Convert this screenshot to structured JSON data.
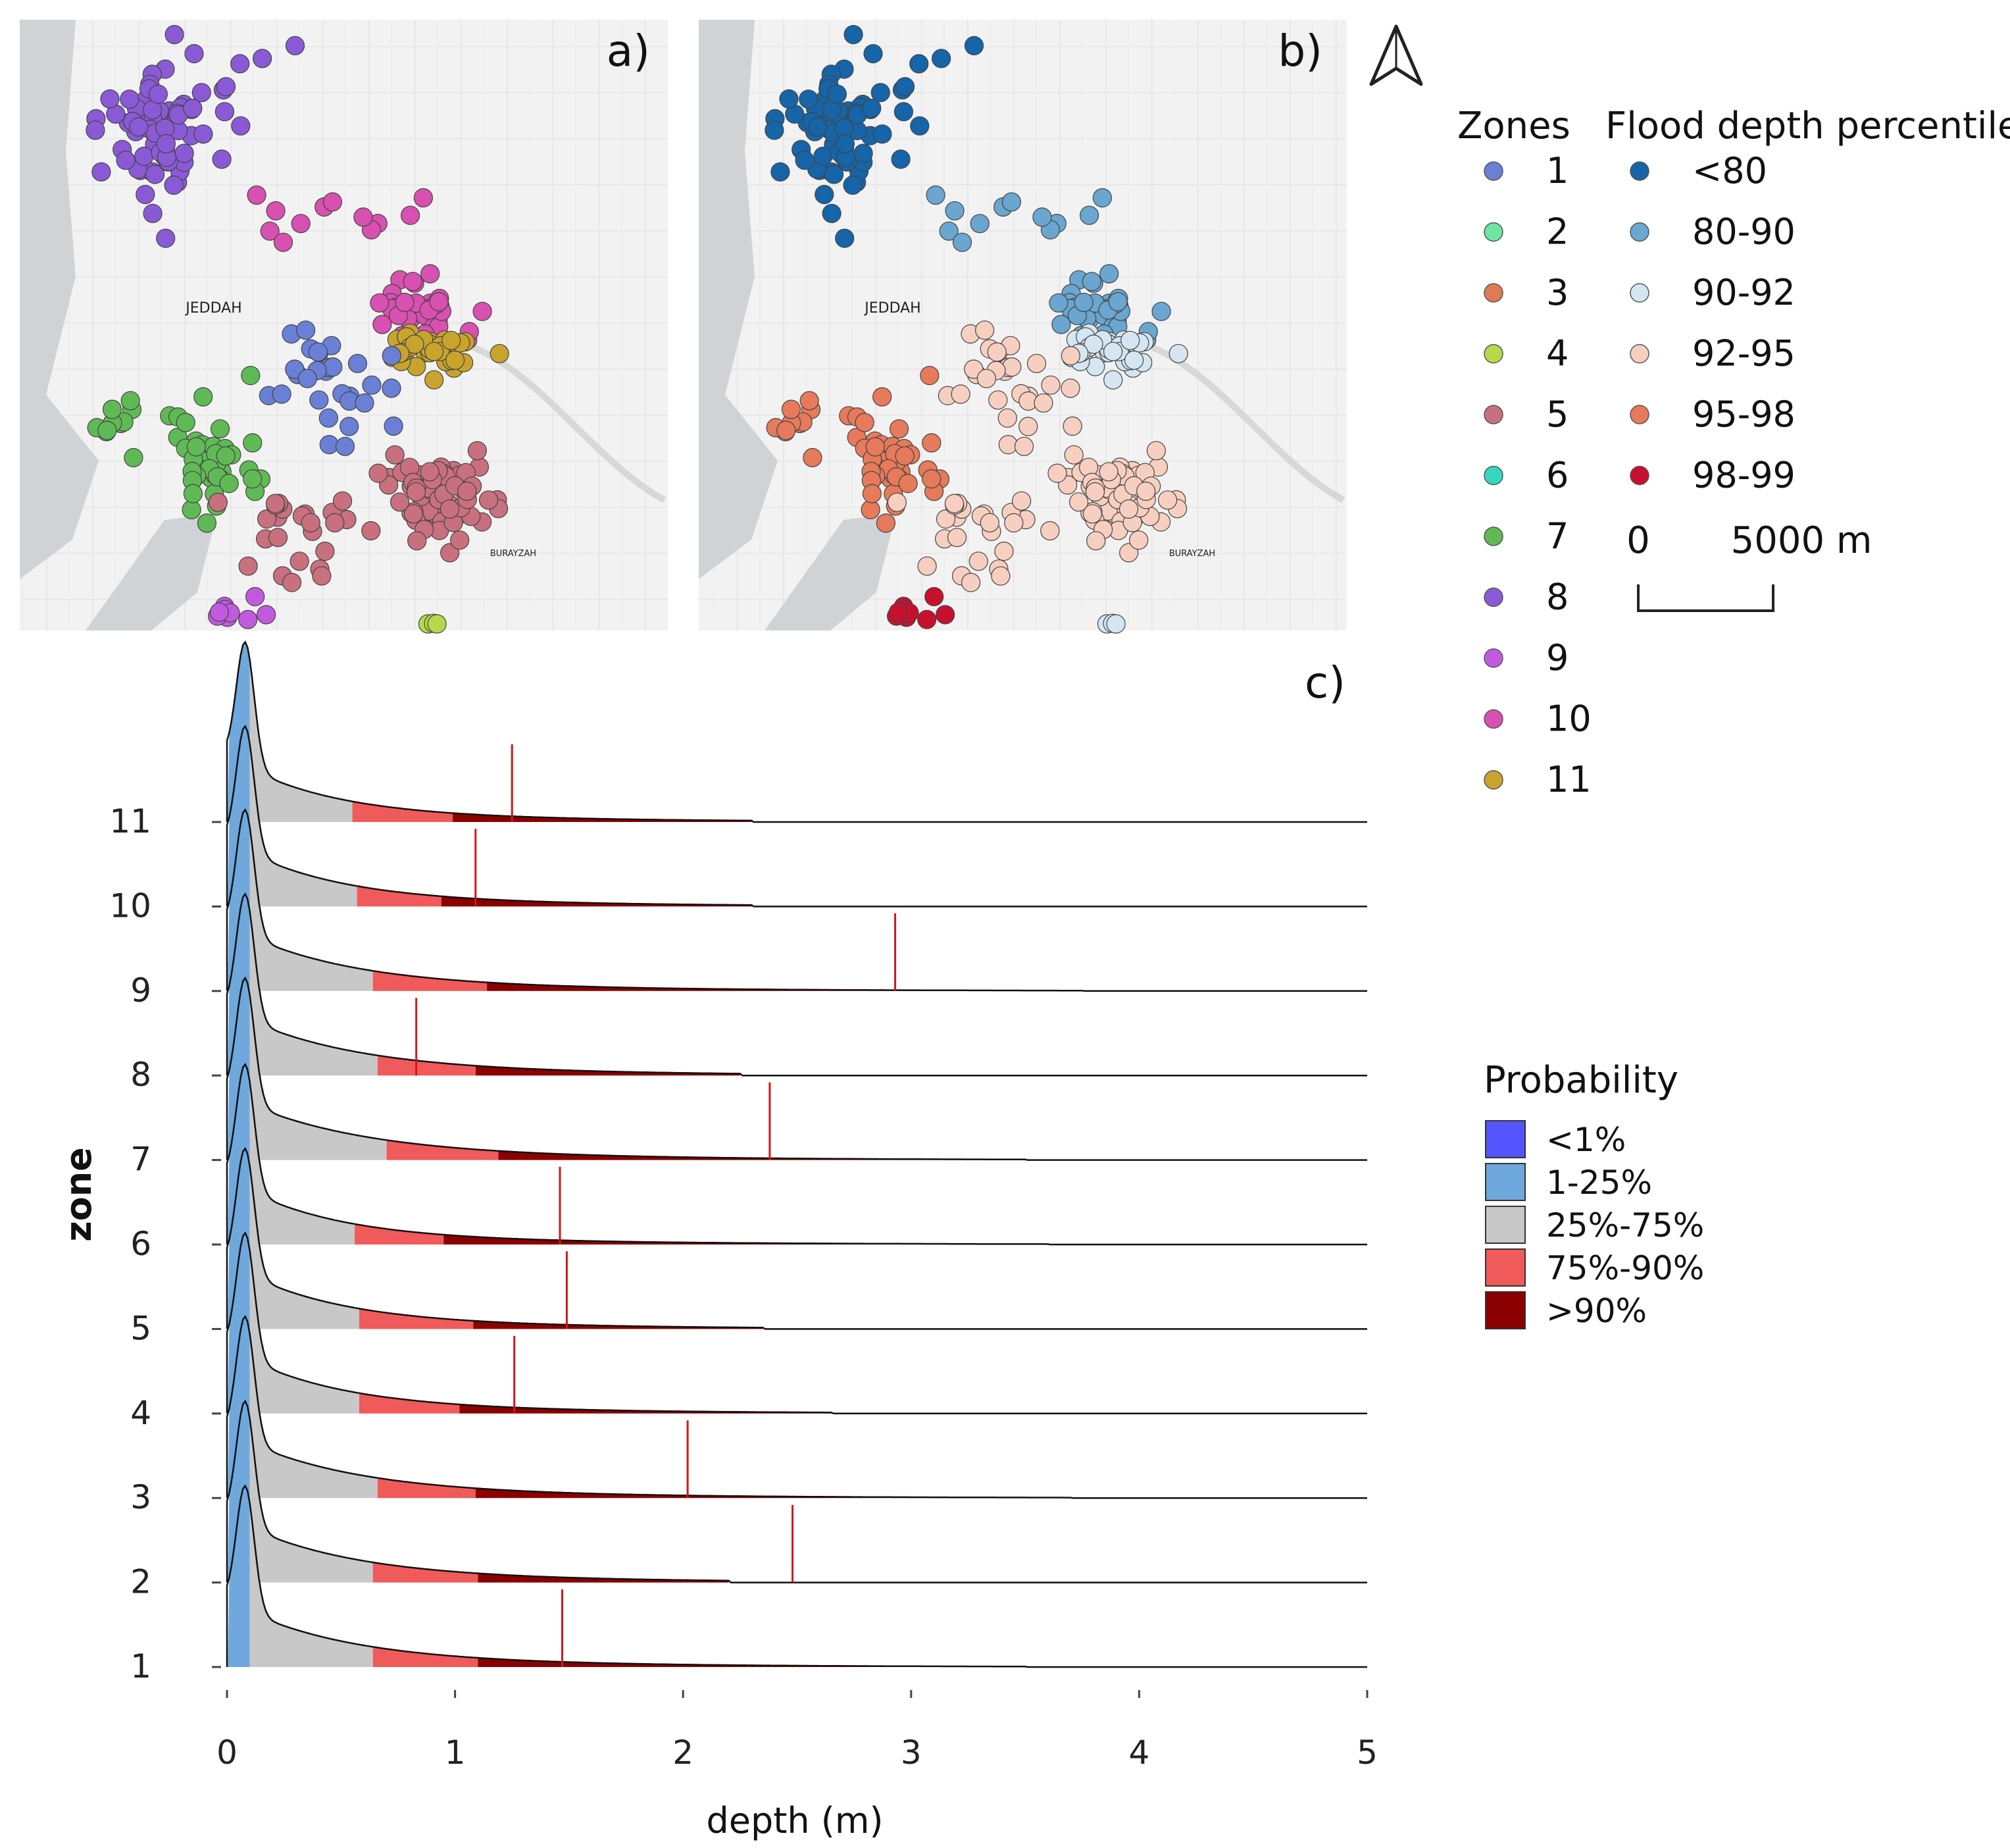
{
  "panels": {
    "a": {
      "label": "a)",
      "city_label": "JEDDAH",
      "secondary_label": "BURAYZAH"
    },
    "b": {
      "label": "b)",
      "city_label": "JEDDAH",
      "secondary_label": "BURAYZAH"
    },
    "c": {
      "label": "c)"
    }
  },
  "north_arrow": {
    "icon": "north-arrow-icon"
  },
  "legend_zones": {
    "title": "Zones",
    "items": [
      {
        "label": "1",
        "color": "#6a7fd6"
      },
      {
        "label": "2",
        "color": "#6ee6a0"
      },
      {
        "label": "3",
        "color": "#e07a55"
      },
      {
        "label": "4",
        "color": "#b8d84a"
      },
      {
        "label": "5",
        "color": "#c9707e"
      },
      {
        "label": "6",
        "color": "#35d6c0"
      },
      {
        "label": "7",
        "color": "#5fba55"
      },
      {
        "label": "8",
        "color": "#8a5ad6"
      },
      {
        "label": "9",
        "color": "#c25ae0"
      },
      {
        "label": "10",
        "color": "#d850b0"
      },
      {
        "label": "11",
        "color": "#c8a42c"
      }
    ]
  },
  "legend_percentile": {
    "title": "Flood depth percentile",
    "items": [
      {
        "label": "<80",
        "color": "#1565a8"
      },
      {
        "label": "80-90",
        "color": "#6aa6cf"
      },
      {
        "label": "90-92",
        "color": "#d4e6f1"
      },
      {
        "label": "92-95",
        "color": "#f7cfc0"
      },
      {
        "label": "95-98",
        "color": "#e67a5a"
      },
      {
        "label": "98-99",
        "color": "#c8102e"
      }
    ]
  },
  "scale_bar": {
    "start": "0",
    "end": "5000 m"
  },
  "legend_probability": {
    "title": "Probability",
    "items": [
      {
        "label": "<1%",
        "color": "#5555ff"
      },
      {
        "label": "1-25%",
        "color": "#6fa8dc"
      },
      {
        "label": "25%-75%",
        "color": "#c8c8c8"
      },
      {
        "label": "75%-90%",
        "color": "#f05a5a"
      },
      {
        "label": ">90%",
        "color": "#8b0000"
      }
    ]
  },
  "chart_data": {
    "type": "ridgeline",
    "xlabel": "depth (m)",
    "ylabel": "zone",
    "xlim": [
      0,
      5
    ],
    "x_ticks": [
      "0",
      "1",
      "2",
      "3",
      "4",
      "5"
    ],
    "categories": [
      "1",
      "2",
      "3",
      "4",
      "5",
      "6",
      "7",
      "8",
      "9",
      "10",
      "11"
    ],
    "quantile_breaks_m": [
      {
        "zone": "1",
        "q25": 0.1,
        "q75": 0.64,
        "q90": 1.1
      },
      {
        "zone": "2",
        "q25": 0.1,
        "q75": 0.64,
        "q90": 1.1
      },
      {
        "zone": "3",
        "q25": 0.1,
        "q75": 0.66,
        "q90": 1.09
      },
      {
        "zone": "4",
        "q25": 0.1,
        "q75": 0.58,
        "q90": 1.02
      },
      {
        "zone": "5",
        "q25": 0.1,
        "q75": 0.58,
        "q90": 1.08
      },
      {
        "zone": "6",
        "q25": 0.1,
        "q75": 0.56,
        "q90": 0.95
      },
      {
        "zone": "7",
        "q25": 0.1,
        "q75": 0.7,
        "q90": 1.19
      },
      {
        "zone": "8",
        "q25": 0.1,
        "q75": 0.66,
        "q90": 1.09
      },
      {
        "zone": "9",
        "q25": 0.1,
        "q75": 0.64,
        "q90": 1.14
      },
      {
        "zone": "10",
        "q25": 0.1,
        "q75": 0.57,
        "q90": 0.94
      },
      {
        "zone": "11",
        "q25": 0.1,
        "q75": 0.55,
        "q90": 0.99
      }
    ],
    "marker_depths_m": [
      {
        "zone": "1",
        "depth": 1.47
      },
      {
        "zone": "2",
        "depth": 2.48
      },
      {
        "zone": "3",
        "depth": 2.02
      },
      {
        "zone": "4",
        "depth": 1.26
      },
      {
        "zone": "5",
        "depth": 1.49
      },
      {
        "zone": "6",
        "depth": 1.46
      },
      {
        "zone": "7",
        "depth": 2.38
      },
      {
        "zone": "8",
        "depth": 0.83
      },
      {
        "zone": "9",
        "depth": 2.93
      },
      {
        "zone": "10",
        "depth": 1.09
      },
      {
        "zone": "11",
        "depth": 1.25
      }
    ],
    "tail_max_m": [
      {
        "zone": "1",
        "max": 3.5
      },
      {
        "zone": "2",
        "max": 2.2
      },
      {
        "zone": "3",
        "max": 3.7
      },
      {
        "zone": "4",
        "max": 2.65
      },
      {
        "zone": "5",
        "max": 2.35
      },
      {
        "zone": "6",
        "max": 3.6
      },
      {
        "zone": "7",
        "max": 3.5
      },
      {
        "zone": "8",
        "max": 2.25
      },
      {
        "zone": "9",
        "max": 3.75
      },
      {
        "zone": "10",
        "max": 2.3
      },
      {
        "zone": "11",
        "max": 2.3
      }
    ]
  }
}
